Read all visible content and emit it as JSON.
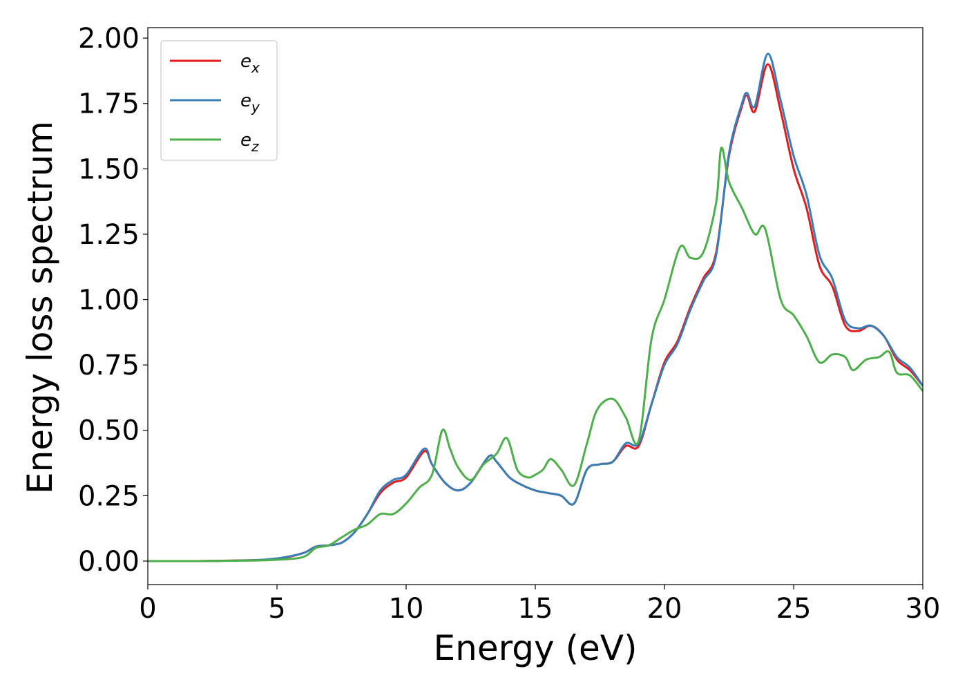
{
  "chart_data": {
    "type": "line",
    "xlabel": "Energy (eV)",
    "ylabel": "Energy loss spectrum",
    "xlim": [
      0,
      30
    ],
    "ylim": [
      -0.09,
      2.04
    ],
    "xticks": [
      "0",
      "5",
      "10",
      "15",
      "20",
      "25",
      "30"
    ],
    "yticks": [
      "0.00",
      "0.25",
      "0.50",
      "0.75",
      "1.00",
      "1.25",
      "1.50",
      "1.75",
      "2.00"
    ],
    "grid": false,
    "legend_position": "top-left",
    "series": [
      {
        "name": "e_x",
        "label_main": "e",
        "label_sub": "x",
        "color": "#e41a1c",
        "points": [
          [
            0,
            0
          ],
          [
            2,
            0
          ],
          [
            4,
            0.003
          ],
          [
            5,
            0.008
          ],
          [
            6,
            0.03
          ],
          [
            6.5,
            0.055
          ],
          [
            7,
            0.06
          ],
          [
            7.5,
            0.07
          ],
          [
            8,
            0.11
          ],
          [
            8.5,
            0.18
          ],
          [
            9,
            0.26
          ],
          [
            9.5,
            0.3
          ],
          [
            10,
            0.32
          ],
          [
            10.7,
            0.42
          ],
          [
            11,
            0.37
          ],
          [
            11.5,
            0.3
          ],
          [
            12,
            0.27
          ],
          [
            12.5,
            0.3
          ],
          [
            13.2,
            0.4
          ],
          [
            13.5,
            0.38
          ],
          [
            14,
            0.32
          ],
          [
            14.5,
            0.29
          ],
          [
            15,
            0.27
          ],
          [
            15.5,
            0.26
          ],
          [
            16,
            0.25
          ],
          [
            16.5,
            0.22
          ],
          [
            17,
            0.35
          ],
          [
            17.5,
            0.37
          ],
          [
            18,
            0.38
          ],
          [
            18.5,
            0.44
          ],
          [
            19,
            0.44
          ],
          [
            19.5,
            0.6
          ],
          [
            20,
            0.76
          ],
          [
            20.5,
            0.84
          ],
          [
            21,
            0.97
          ],
          [
            21.5,
            1.08
          ],
          [
            22,
            1.18
          ],
          [
            22.5,
            1.55
          ],
          [
            23,
            1.74
          ],
          [
            23.2,
            1.78
          ],
          [
            23.5,
            1.72
          ],
          [
            24,
            1.9
          ],
          [
            24.5,
            1.72
          ],
          [
            25,
            1.5
          ],
          [
            25.5,
            1.35
          ],
          [
            26,
            1.13
          ],
          [
            26.5,
            1.05
          ],
          [
            27,
            0.9
          ],
          [
            27.5,
            0.88
          ],
          [
            28,
            0.9
          ],
          [
            28.5,
            0.86
          ],
          [
            29,
            0.77
          ],
          [
            29.5,
            0.73
          ],
          [
            30,
            0.67
          ]
        ]
      },
      {
        "name": "e_y",
        "label_main": "e",
        "label_sub": "y",
        "color": "#377eb8",
        "points": [
          [
            0,
            0
          ],
          [
            2,
            0
          ],
          [
            4,
            0.003
          ],
          [
            5,
            0.01
          ],
          [
            6,
            0.03
          ],
          [
            6.5,
            0.055
          ],
          [
            7,
            0.06
          ],
          [
            7.5,
            0.07
          ],
          [
            8,
            0.11
          ],
          [
            8.5,
            0.18
          ],
          [
            9,
            0.27
          ],
          [
            9.5,
            0.31
          ],
          [
            10,
            0.33
          ],
          [
            10.7,
            0.43
          ],
          [
            11,
            0.37
          ],
          [
            11.5,
            0.3
          ],
          [
            12,
            0.27
          ],
          [
            12.5,
            0.3
          ],
          [
            13.2,
            0.4
          ],
          [
            13.5,
            0.38
          ],
          [
            14,
            0.32
          ],
          [
            14.5,
            0.29
          ],
          [
            15,
            0.27
          ],
          [
            15.5,
            0.26
          ],
          [
            16,
            0.25
          ],
          [
            16.5,
            0.22
          ],
          [
            17,
            0.35
          ],
          [
            17.5,
            0.37
          ],
          [
            18,
            0.38
          ],
          [
            18.5,
            0.45
          ],
          [
            19,
            0.45
          ],
          [
            19.5,
            0.6
          ],
          [
            20,
            0.75
          ],
          [
            20.5,
            0.83
          ],
          [
            21,
            0.96
          ],
          [
            21.5,
            1.07
          ],
          [
            22,
            1.17
          ],
          [
            22.5,
            1.56
          ],
          [
            23,
            1.75
          ],
          [
            23.2,
            1.79
          ],
          [
            23.5,
            1.74
          ],
          [
            24,
            1.94
          ],
          [
            24.5,
            1.76
          ],
          [
            25,
            1.55
          ],
          [
            25.5,
            1.4
          ],
          [
            26,
            1.17
          ],
          [
            26.5,
            1.08
          ],
          [
            27,
            0.92
          ],
          [
            27.5,
            0.89
          ],
          [
            28,
            0.9
          ],
          [
            28.5,
            0.86
          ],
          [
            29,
            0.78
          ],
          [
            29.5,
            0.74
          ],
          [
            30,
            0.67
          ]
        ]
      },
      {
        "name": "e_z",
        "label_main": "e",
        "label_sub": "z",
        "color": "#4daf4a",
        "points": [
          [
            0,
            0
          ],
          [
            2,
            0
          ],
          [
            4,
            0.002
          ],
          [
            5,
            0.005
          ],
          [
            6,
            0.015
          ],
          [
            6.5,
            0.05
          ],
          [
            7,
            0.06
          ],
          [
            7.5,
            0.09
          ],
          [
            8,
            0.12
          ],
          [
            8.5,
            0.14
          ],
          [
            9,
            0.18
          ],
          [
            9.5,
            0.18
          ],
          [
            10,
            0.22
          ],
          [
            10.5,
            0.28
          ],
          [
            11,
            0.33
          ],
          [
            11.4,
            0.5
          ],
          [
            11.7,
            0.43
          ],
          [
            12,
            0.36
          ],
          [
            12.5,
            0.31
          ],
          [
            13,
            0.37
          ],
          [
            13.5,
            0.41
          ],
          [
            13.9,
            0.47
          ],
          [
            14.3,
            0.35
          ],
          [
            14.7,
            0.32
          ],
          [
            15,
            0.33
          ],
          [
            15.3,
            0.35
          ],
          [
            15.6,
            0.39
          ],
          [
            16,
            0.35
          ],
          [
            16.5,
            0.29
          ],
          [
            17,
            0.45
          ],
          [
            17.4,
            0.58
          ],
          [
            18,
            0.62
          ],
          [
            18.5,
            0.55
          ],
          [
            19,
            0.46
          ],
          [
            19.5,
            0.85
          ],
          [
            20,
            1.0
          ],
          [
            20.6,
            1.2
          ],
          [
            21,
            1.16
          ],
          [
            21.5,
            1.18
          ],
          [
            22,
            1.37
          ],
          [
            22.2,
            1.58
          ],
          [
            22.5,
            1.45
          ],
          [
            23,
            1.35
          ],
          [
            23.5,
            1.25
          ],
          [
            23.9,
            1.27
          ],
          [
            24.5,
            1.0
          ],
          [
            25,
            0.94
          ],
          [
            25.5,
            0.86
          ],
          [
            26,
            0.76
          ],
          [
            26.5,
            0.79
          ],
          [
            27,
            0.78
          ],
          [
            27.3,
            0.73
          ],
          [
            27.8,
            0.77
          ],
          [
            28.3,
            0.78
          ],
          [
            28.7,
            0.8
          ],
          [
            29,
            0.72
          ],
          [
            29.5,
            0.71
          ],
          [
            30,
            0.65
          ]
        ]
      }
    ]
  }
}
